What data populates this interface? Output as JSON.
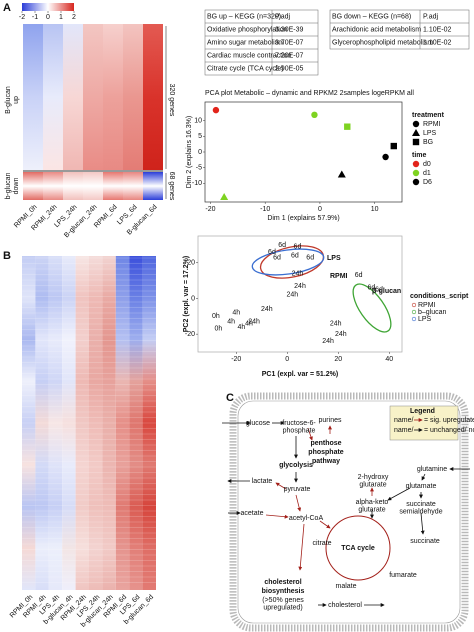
{
  "panel_letters": [
    "A",
    "B",
    "C"
  ],
  "heatmap_a": {
    "scale_ticks": [
      -2,
      -1,
      0,
      1,
      2
    ],
    "columns": [
      "RPMI_0h",
      "RPMI_24h",
      "LPS_24h",
      "B-glucan_24h",
      "RPMI_6d",
      "LPS_6d",
      "B-glucan_6d"
    ],
    "row_groups": [
      {
        "label": [
          "B-glucan",
          "up"
        ],
        "count": "320 genes"
      },
      {
        "label": [
          "b-glucan",
          "down"
        ],
        "count": "68 genes"
      }
    ]
  },
  "heatmap_b": {
    "columns": [
      "RPMI_0h",
      "RPMI_4h",
      "LPS_4h",
      "b-glucan_4h",
      "RPMI_24h",
      "LPS_24h",
      "b-glucan_24h",
      "RPMI_6d",
      "LPS_6d",
      "b-glucan_6d"
    ]
  },
  "tables": [
    {
      "header": [
        "BG up – KEGG (n=320)",
        "P.adj"
      ],
      "rows": [
        [
          "Oxidative phosphorylation",
          "3.30E-39"
        ],
        [
          "Amino sugar metabolism",
          "3.70E-07"
        ],
        [
          "Cardiac muscle contraction",
          "7.20E-07"
        ],
        [
          "Citrate cycle (TCA cycle)",
          "2.90E-05"
        ]
      ]
    },
    {
      "header": [
        "BG down – KEGG (n=68)",
        "P.adj"
      ],
      "rows": [
        [
          "Arachidonic acid metabolism",
          "1.10E-02"
        ],
        [
          "Glycerophospholipid metabolism",
          "1.10E-02"
        ]
      ]
    }
  ],
  "chart_data": [
    {
      "type": "scatter",
      "title": "PCA plot Metabolic – dynamic and RPKM2 2samples logeRPKM all",
      "x_label": "Dim 1 (explains 57.9%)",
      "y_label": "Dim 2 (explains 16.3%)",
      "xlim": [
        -21,
        15
      ],
      "xticks": [
        -20,
        -10,
        0,
        10
      ],
      "ylim": [
        -16,
        16
      ],
      "yticks": [
        -10,
        -5,
        0,
        5,
        10
      ],
      "legend": [
        {
          "title": "treatment",
          "items": [
            {
              "label": "RPMI",
              "shape": "circle"
            },
            {
              "label": "LPS",
              "shape": "triangle"
            },
            {
              "label": "BG",
              "shape": "square"
            }
          ]
        },
        {
          "title": "time",
          "items": [
            {
              "label": "d0",
              "color": "#e2231a"
            },
            {
              "label": "d1",
              "color": "#7ed321"
            },
            {
              "label": "D6",
              "color": "#000000"
            }
          ]
        }
      ],
      "points": [
        {
          "x": -19,
          "y": 13.4,
          "treatment": "RPMI",
          "time": "d0"
        },
        {
          "x": -17.5,
          "y": -14.4,
          "treatment": "LPS",
          "time": "d1"
        },
        {
          "x": -1,
          "y": 11.9,
          "treatment": "RPMI",
          "time": "d1"
        },
        {
          "x": 5,
          "y": 8.1,
          "treatment": "BG",
          "time": "d1"
        },
        {
          "x": 4,
          "y": -7.2,
          "treatment": "LPS",
          "time": "D6"
        },
        {
          "x": 12,
          "y": -1.6,
          "treatment": "RPMI",
          "time": "D6"
        },
        {
          "x": 13.5,
          "y": 1.9,
          "treatment": "BG",
          "time": "D6"
        }
      ]
    },
    {
      "type": "labelscatter",
      "x_label": "PC1 (expl. var = 51.2%)",
      "y_label": "PC2 (expl. var = 17.2%)",
      "xlim": [
        -35,
        45
      ],
      "xticks": [
        -20,
        0,
        20,
        40
      ],
      "ylim": [
        -30,
        35
      ],
      "yticks": [
        -20,
        0,
        20
      ],
      "legend_title": "conditions_script",
      "groups": [
        {
          "name": "RPMI",
          "color": "#c0392b"
        },
        {
          "name": "b–glucan",
          "color": "#3fa535"
        },
        {
          "name": "LPS",
          "color": "#3b6fd1"
        }
      ],
      "annotations": [
        {
          "text": "LPS",
          "color": "#3b6fd1"
        },
        {
          "text": "RPMI",
          "color": "#c0392b"
        },
        {
          "text": "β-glucan",
          "color": "#3fa535"
        }
      ],
      "points": [
        {
          "x": -2,
          "y": 30,
          "label": "6d",
          "group": "RPMI"
        },
        {
          "x": 4,
          "y": 29,
          "label": "6d",
          "group": "RPMI"
        },
        {
          "x": -6,
          "y": 26,
          "label": "6d",
          "group": "RPMI"
        },
        {
          "x": 3,
          "y": 24,
          "label": "6d",
          "group": "LPS"
        },
        {
          "x": -4,
          "y": 23,
          "label": "6d",
          "group": "RPMI"
        },
        {
          "x": 9,
          "y": 23,
          "label": "6d",
          "group": "LPS"
        },
        {
          "x": 28,
          "y": 13,
          "label": "6d",
          "group": "b–glucan"
        },
        {
          "x": 33,
          "y": 6,
          "label": "6d",
          "group": "b–glucan"
        },
        {
          "x": 36,
          "y": 5,
          "label": "6d",
          "group": "b–glucan"
        },
        {
          "x": 4,
          "y": 14,
          "label": "24h",
          "group": "LPS"
        },
        {
          "x": 5,
          "y": 7,
          "label": "24h",
          "group": "LPS"
        },
        {
          "x": 2,
          "y": 2,
          "label": "24h",
          "group": "b–glucan"
        },
        {
          "x": -8,
          "y": -6,
          "label": "24h",
          "group": "RPMI"
        },
        {
          "x": -13,
          "y": -13,
          "label": "24h",
          "group": "RPMI"
        },
        {
          "x": 19,
          "y": -14,
          "label": "24h",
          "group": "RPMI"
        },
        {
          "x": 21,
          "y": -20,
          "label": "24h",
          "group": "RPMI"
        },
        {
          "x": 16,
          "y": -24,
          "label": "24h",
          "group": "b–glucan"
        },
        {
          "x": -20,
          "y": -8,
          "label": "4h",
          "group": "b–glucan"
        },
        {
          "x": -22,
          "y": -13,
          "label": "4h",
          "group": "RPMI"
        },
        {
          "x": -18,
          "y": -16,
          "label": "4h",
          "group": "LPS"
        },
        {
          "x": -15,
          "y": -14,
          "label": "4h",
          "group": "LPS"
        },
        {
          "x": -28,
          "y": -10,
          "label": "0h",
          "group": "RPMI"
        },
        {
          "x": -27,
          "y": -17,
          "label": "0h",
          "group": "RPMI"
        }
      ]
    }
  ],
  "diagram": {
    "legend": {
      "title": "Legend",
      "items": [
        {
          "name": "name/",
          "text": "= sig. upregulated",
          "color": "#a3201a"
        },
        {
          "name": "name/",
          "text": "= unchanged/ not meas.",
          "color": "#111111"
        }
      ]
    },
    "nodes": [
      {
        "lines": [
          "purines"
        ],
        "color": "#a3201a",
        "bold": false
      },
      {
        "lines": [
          "penthose",
          "phosphate",
          "pathway"
        ],
        "color": "#1f2a6e",
        "bold": true
      },
      {
        "lines": [
          "glucose"
        ],
        "color": "#111111",
        "bold": false
      },
      {
        "lines": [
          "fructose-6-",
          "phosphate"
        ],
        "color": "#111111",
        "bold": false
      },
      {
        "lines": [
          "glycolysis"
        ],
        "color": "#1f2a6e",
        "bold": true
      },
      {
        "lines": [
          "lactate"
        ],
        "color": "#a3201a",
        "bold": false
      },
      {
        "lines": [
          "pyruvate"
        ],
        "color": "#111111",
        "bold": false
      },
      {
        "lines": [
          "acetate"
        ],
        "color": "#111111",
        "bold": false
      },
      {
        "lines": [
          "acetyl-CoA"
        ],
        "color": "#a3201a",
        "bold": false
      },
      {
        "lines": [
          "citrate"
        ],
        "color": "#111111",
        "bold": false
      },
      {
        "lines": [
          "TCA cycle"
        ],
        "color": "#111111",
        "bold": true
      },
      {
        "lines": [
          "2-hydroxy",
          "glutarate"
        ],
        "color": "#a3201a",
        "bold": false
      },
      {
        "lines": [
          "alpha-keto",
          "glutarate"
        ],
        "color": "#111111",
        "bold": false
      },
      {
        "lines": [
          "glutamine"
        ],
        "color": "#111111",
        "bold": false
      },
      {
        "lines": [
          "glutamate"
        ],
        "color": "#111111",
        "bold": false
      },
      {
        "lines": [
          "succinate",
          "semialdehyde"
        ],
        "color": "#111111",
        "bold": false
      },
      {
        "lines": [
          "succinate"
        ],
        "color": "#a3201a",
        "bold": false
      },
      {
        "lines": [
          "fumarate"
        ],
        "color": "#a3201a",
        "bold": false
      },
      {
        "lines": [
          "malate"
        ],
        "color": "#a3201a",
        "bold": false
      },
      {
        "lines": [
          "cholesterol",
          "biosynthesis"
        ],
        "color": "#1f2a6e",
        "bold": true
      },
      {
        "lines": [
          "(>50% genes",
          "upregulated)"
        ],
        "color": "#1f2a6e",
        "bold": false
      },
      {
        "lines": [
          "cholesterol"
        ],
        "color": "#111111",
        "bold": false
      }
    ]
  }
}
